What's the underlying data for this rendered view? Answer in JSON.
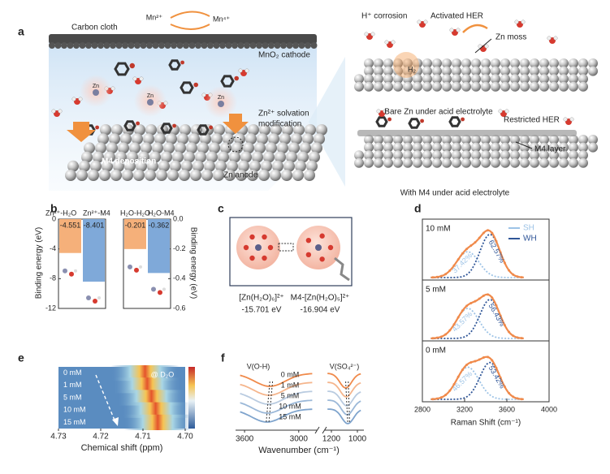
{
  "panel_a": {
    "label": "a",
    "carbon_cloth": "Carbon cloth",
    "mn2": "Mn²⁺",
    "mn4": "Mn⁴⁺",
    "cathode": "MnO₂ cathode",
    "solvation": "Zn²⁺ solvation",
    "solvation2": "modification",
    "zn": "Zn",
    "deposition": "M4 deposition",
    "anode": "Zn anode",
    "corrosion": "H⁺ corrosion",
    "activated": "Activated HER",
    "moss": "Zn moss",
    "h2": "H₂",
    "bare": "Bare Zn under acid electrolyte",
    "restricted": "Restricted HER",
    "layer": "M4 layer",
    "with_m4": "With M4 under acid electrolyte"
  },
  "panel_b": {
    "label": "b",
    "ylabel": "Binding energy (eV)",
    "charts": [
      {
        "type": "bar",
        "categories": [
          "Zn²⁺-H₂O",
          "Zn²⁺-M4"
        ],
        "values": [
          -4.551,
          -8.401
        ],
        "colors": [
          "#f5b07a",
          "#7fa9d9"
        ],
        "ylim": [
          -12,
          0
        ],
        "yticks": [
          0,
          -4,
          -8,
          -12
        ]
      },
      {
        "type": "bar",
        "categories": [
          "H₂O-H₂O",
          "H₂O-M4"
        ],
        "values": [
          -0.201,
          -0.362
        ],
        "colors": [
          "#f5b07a",
          "#7fa9d9"
        ],
        "ylim": [
          -0.6,
          0
        ],
        "yticks": [
          {
            "value": 0,
            "label": "0.0"
          },
          -0.2,
          -0.4,
          -0.6
        ]
      }
    ]
  },
  "panel_c": {
    "label": "c",
    "items": [
      {
        "name": "[Zn(H₂O)₆]²⁺",
        "energy": "-15.701 eV"
      },
      {
        "name": "M4-[Zn(H₂O)₅]²⁺",
        "energy": "-16.904 eV"
      }
    ]
  },
  "panel_d": {
    "label": "d",
    "type": "line",
    "xlabel": "Raman Shift (cm⁻¹)",
    "xlim": [
      2800,
      4000
    ],
    "xticks": [
      2800,
      3200,
      3600,
      4000
    ],
    "fit_color": "#f08a4b",
    "legend": [
      {
        "name": "SH",
        "color": "#9dc3e6"
      },
      {
        "name": "WH",
        "color": "#2f5597"
      }
    ],
    "subplots": [
      {
        "name": "10 mM",
        "values": [
          37.42,
          62.57
        ],
        "value_labels": [
          "37.42%",
          "62.57%"
        ]
      },
      {
        "name": "5 mM",
        "values": [
          43.57,
          56.43
        ],
        "value_labels": [
          "43.57%",
          "56.43%"
        ]
      },
      {
        "name": "0 mM",
        "values": [
          46.57,
          53.42
        ],
        "value_labels": [
          "46.57%",
          "53.42%"
        ]
      }
    ]
  },
  "panel_e": {
    "label": "e",
    "type": "heatmap",
    "note": "@ D₂O",
    "xlabel": "Chemical shift (ppm)",
    "xlim": [
      4.73,
      4.7
    ],
    "xticks": [
      4.73,
      4.72,
      4.71,
      {
        "value": 4.7,
        "label": "4.70"
      }
    ],
    "rows": [
      "0 mM",
      "1 mM",
      "5 mM",
      "10 mM",
      "15 mM"
    ],
    "peaks": [
      4.7095,
      4.709,
      4.708,
      4.707,
      4.7065
    ]
  },
  "panel_f": {
    "label": "f",
    "xlabel": "Wavenumber (cm⁻¹)",
    "band_left": "V(O-H)",
    "band_right": "V(SO₄²⁻)",
    "xticks": [
      3600,
      3000,
      1200,
      1000
    ],
    "xlim": [
      [
        3700,
        2800
      ],
      [
        1250,
        950
      ]
    ],
    "rows": [
      "0 mM",
      "1 mM",
      "5 mM",
      "10 mM",
      "15 mM"
    ],
    "colors": [
      "#f08a4b",
      "#f5b58c",
      "#b9cbe0",
      "#9bb8d8",
      "#7fa4cd"
    ]
  }
}
